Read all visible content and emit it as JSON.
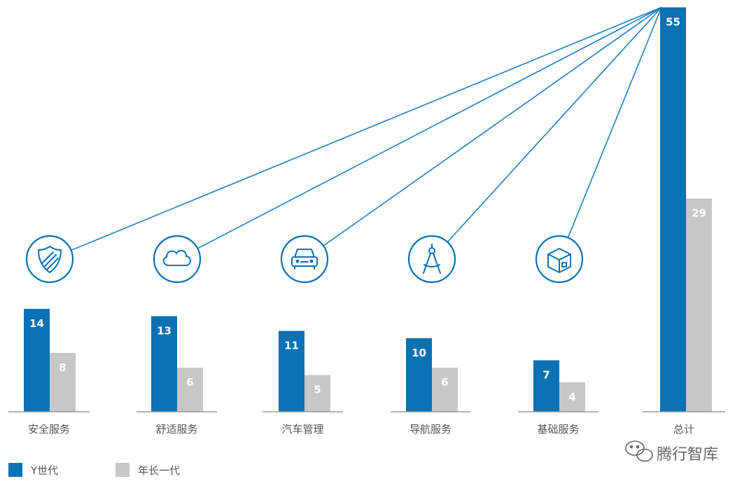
{
  "chart_data": {
    "type": "bar",
    "categories": [
      "安全服务",
      "舒适服务",
      "汽车管理",
      "导航服务",
      "基础服务",
      "总计"
    ],
    "series": [
      {
        "name": "Y世代",
        "values": [
          14,
          13,
          11,
          10,
          7,
          55
        ]
      },
      {
        "name": "年长一代",
        "values": [
          8,
          6,
          5,
          6,
          4,
          29
        ]
      }
    ],
    "icons": [
      "shield-icon",
      "cloud-icon",
      "car-icon",
      "compass-icon",
      "box-icon"
    ],
    "colors": {
      "series_1": "#0a71b4",
      "series_2": "#c7c7c7",
      "connector": "#1d7fbf",
      "axis": "#9a9a9a"
    },
    "legend_position": "bottom-left",
    "grid": false
  },
  "watermark": "腾行智库"
}
